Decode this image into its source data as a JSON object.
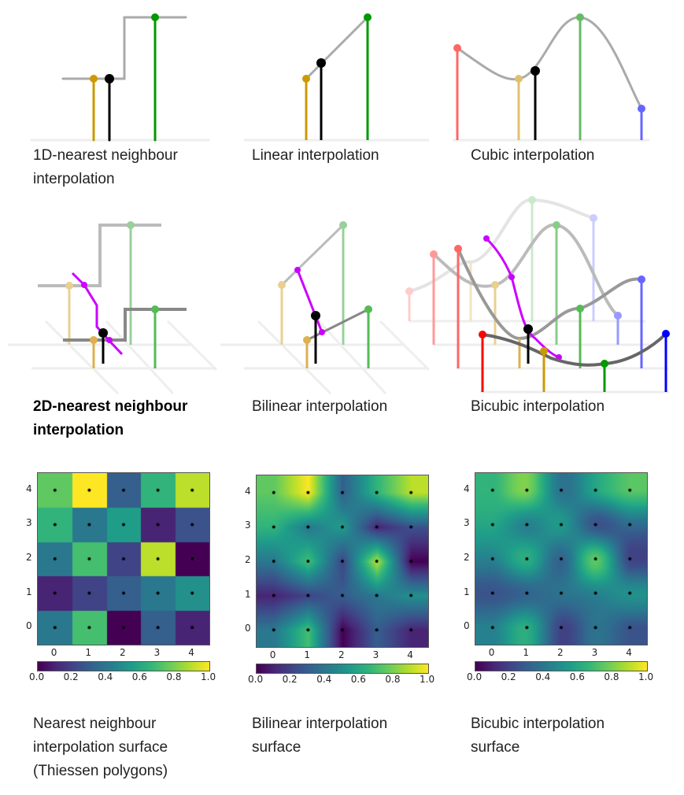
{
  "captions": {
    "nearest_1d": "1D-nearest neighbour\ninterpolation",
    "linear": "Linear interpolation",
    "cubic": "Cubic interpolation",
    "nearest_2d": "2D-nearest neighbour\ninterpolation",
    "bilinear": "Bilinear interpolation",
    "bicubic": "Bicubic interpolation",
    "nearest_surface": "Nearest neighbour\ninterpolation surface\n(Thiessen polygons)",
    "bilinear_surface": "Bilinear interpolation\nsurface",
    "bicubic_surface": "Bicubic interpolation\nsurface"
  },
  "colors": {
    "red": "#ff0000",
    "gold": "#cc9900",
    "green": "#009900",
    "blue": "#0000ff",
    "black": "#000000",
    "magenta": "#cc00ff",
    "curve": "#999999"
  },
  "chart_data": [
    {
      "type": "heatmap",
      "method": "nearest",
      "colormap": "viridis",
      "x_ticks": [
        "0",
        "1",
        "2",
        "3",
        "4"
      ],
      "y_ticks": [
        "0",
        "1",
        "2",
        "3",
        "4"
      ],
      "colorbar_ticks": [
        "0.0",
        "0.2",
        "0.4",
        "0.6",
        "0.8",
        "1.0"
      ],
      "clim": [
        0,
        1
      ],
      "grid_rows_y0_to_y4": [
        [
          0.4,
          0.7,
          0.0,
          0.3,
          0.1
        ],
        [
          0.1,
          0.2,
          0.3,
          0.4,
          0.5
        ],
        [
          0.4,
          0.7,
          0.2,
          0.9,
          0.0
        ],
        [
          0.65,
          0.4,
          0.55,
          0.1,
          0.25
        ],
        [
          0.75,
          1.0,
          0.3,
          0.65,
          0.9
        ]
      ]
    },
    {
      "type": "heatmap",
      "method": "bilinear",
      "colormap": "viridis",
      "x_ticks": [
        "0",
        "1",
        "2",
        "3",
        "4"
      ],
      "y_ticks": [
        "0",
        "1",
        "2",
        "3",
        "4"
      ],
      "colorbar_ticks": [
        "0.0",
        "0.2",
        "0.4",
        "0.6",
        "0.8",
        "1.0"
      ],
      "clim": [
        0,
        1
      ]
    },
    {
      "type": "heatmap",
      "method": "bicubic",
      "colormap": "viridis",
      "x_ticks": [
        "0",
        "1",
        "2",
        "3",
        "4"
      ],
      "y_ticks": [
        "0",
        "1",
        "2",
        "3",
        "4"
      ],
      "colorbar_ticks": [
        "0.0",
        "0.2",
        "0.4",
        "0.6",
        "0.8",
        "1.0"
      ],
      "clim": [
        0,
        1
      ]
    }
  ]
}
